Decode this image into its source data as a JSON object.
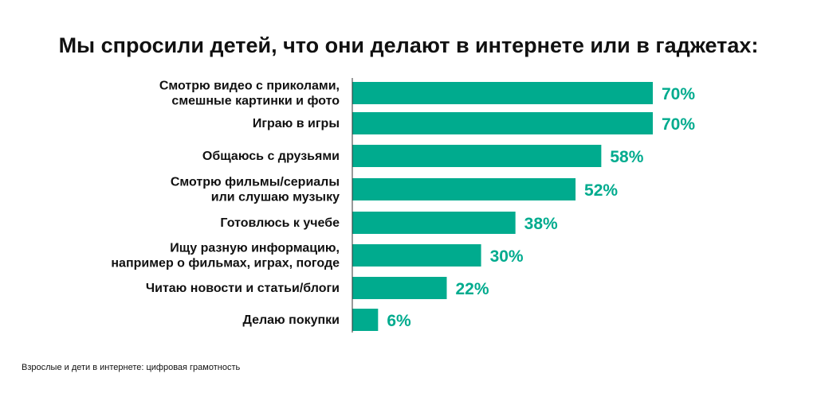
{
  "colors": {
    "bar": "#00ab8e",
    "text": "#111111",
    "axis": "#333333"
  },
  "source": "Взрослые и дети в интернете: цифровая грамотность",
  "chart_data": {
    "type": "bar",
    "orientation": "horizontal",
    "title": "Мы спросили детей, что они делают в интернете или в гаджетах:",
    "categories": [
      [
        "Смотрю видео с приколами,",
        "смешные картинки и фото"
      ],
      [
        "Играю в игры"
      ],
      [
        "Общаюсь с друзьями"
      ],
      [
        "Смотрю фильмы/сериалы",
        "или слушаю музыку"
      ],
      [
        "Готовлюсь к учебе"
      ],
      [
        "Ищу разную информацию,",
        "например о фильмах, играх, погоде"
      ],
      [
        "Читаю новости и статьи/блоги"
      ],
      [
        "Делаю покупки"
      ]
    ],
    "values": [
      70,
      70,
      58,
      52,
      38,
      30,
      22,
      6
    ],
    "value_labels": [
      "70%",
      "70%",
      "58%",
      "52%",
      "38%",
      "30%",
      "22%",
      "6%"
    ],
    "unit": "%",
    "xlim": [
      0,
      70
    ],
    "grid": false,
    "legend": "none"
  }
}
